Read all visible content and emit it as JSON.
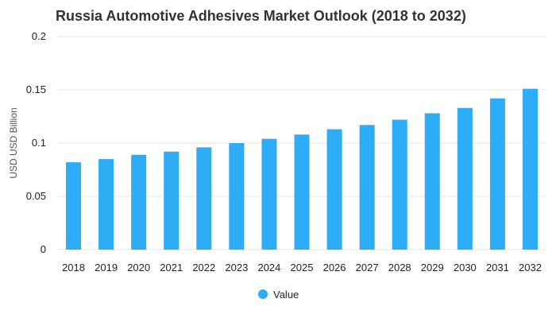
{
  "chart_data": {
    "type": "bar",
    "title": "Russia Automotive Adhesives Market Outlook (2018 to 2032)",
    "xlabel": "",
    "ylabel": "USD USD Billion",
    "ylim": [
      0,
      0.2
    ],
    "yticks": [
      "0",
      "0.05",
      "0.1",
      "0.15",
      "0.2"
    ],
    "ytick_values": [
      0,
      0.05,
      0.1,
      0.15,
      0.2
    ],
    "grid": true,
    "legend_position": "bottom-center",
    "categories": [
      "2018",
      "2019",
      "2020",
      "2021",
      "2022",
      "2023",
      "2024",
      "2025",
      "2026",
      "2027",
      "2028",
      "2029",
      "2030",
      "2031",
      "2032"
    ],
    "series": [
      {
        "name": "Value",
        "color": "#2eacf6",
        "values": [
          0.082,
          0.085,
          0.089,
          0.092,
          0.096,
          0.1,
          0.104,
          0.108,
          0.113,
          0.117,
          0.122,
          0.128,
          0.133,
          0.142,
          0.151
        ]
      }
    ]
  }
}
